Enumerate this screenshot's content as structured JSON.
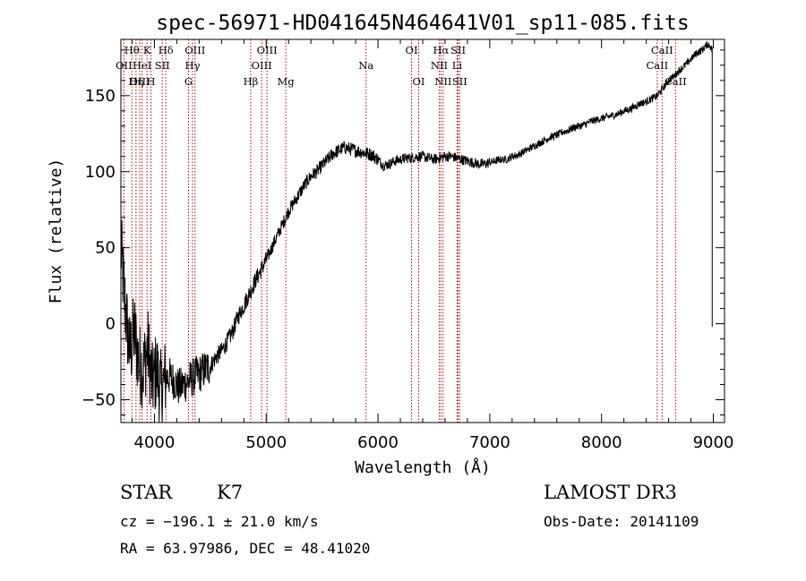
{
  "chart_data": {
    "type": "line",
    "title": "spec-56971-HD041645N464641V01_sp11-085.fits",
    "xlabel": "Wavelength (Å)",
    "ylabel": "Flux (relative)",
    "xlim": [
      3700,
      9100
    ],
    "ylim": [
      -65,
      187
    ],
    "xticks": [
      4000,
      5000,
      6000,
      7000,
      8000,
      9000
    ],
    "yticks": [
      -50,
      0,
      50,
      100,
      150
    ],
    "series": [
      {
        "name": "flux",
        "x": [
          3700,
          3740,
          3780,
          3820,
          3860,
          3900,
          3940,
          3980,
          4020,
          4060,
          4100,
          4140,
          4180,
          4220,
          4260,
          4300,
          4350,
          4400,
          4450,
          4500,
          4550,
          4600,
          4650,
          4700,
          4750,
          4800,
          4850,
          4900,
          4950,
          5000,
          5050,
          5100,
          5150,
          5200,
          5250,
          5300,
          5350,
          5400,
          5450,
          5500,
          5550,
          5600,
          5650,
          5700,
          5750,
          5800,
          5850,
          5900,
          5950,
          6000,
          6050,
          6100,
          6150,
          6200,
          6250,
          6300,
          6350,
          6400,
          6450,
          6500,
          6550,
          6600,
          6650,
          6700,
          6750,
          6800,
          6850,
          6900,
          6950,
          7000,
          7050,
          7100,
          7150,
          7200,
          7250,
          7300,
          7350,
          7400,
          7450,
          7500,
          7550,
          7600,
          7650,
          7700,
          7750,
          7800,
          7850,
          7900,
          7950,
          8000,
          8050,
          8100,
          8150,
          8200,
          8250,
          8300,
          8350,
          8400,
          8450,
          8500,
          8550,
          8600,
          8650,
          8700,
          8750,
          8800,
          8850,
          8900,
          8950,
          8980,
          9000
        ],
        "y": [
          50,
          10,
          -20,
          -5,
          -25,
          -30,
          -15,
          -40,
          -30,
          -45,
          -35,
          -35,
          -38,
          -42,
          -40,
          -38,
          -35,
          -33,
          -30,
          -28,
          -22,
          -18,
          -12,
          -5,
          5,
          12,
          20,
          28,
          35,
          42,
          50,
          58,
          66,
          74,
          80,
          86,
          92,
          97,
          100,
          104,
          108,
          112,
          114,
          116,
          115,
          114,
          113,
          112,
          111,
          108,
          104,
          105,
          107,
          108,
          109,
          109,
          110,
          110,
          109,
          108,
          109,
          110,
          110,
          109,
          108,
          107,
          106,
          105,
          105,
          106,
          107,
          108,
          108,
          110,
          111,
          113,
          115,
          117,
          119,
          121,
          123,
          124,
          126,
          127,
          129,
          130,
          131,
          133,
          134,
          135,
          136,
          137,
          138,
          140,
          141,
          143,
          145,
          146,
          148,
          150,
          155,
          160,
          163,
          167,
          170,
          174,
          178,
          180,
          184,
          182,
          175
        ]
      }
    ],
    "spectral_lines": [
      {
        "label": "Hθ",
        "x": 3798,
        "row": 0
      },
      {
        "label": "OII",
        "x": 3727,
        "row": 1
      },
      {
        "label": "OIII",
        "x": 3869,
        "row": 2
      },
      {
        "label": "K",
        "x": 3934,
        "row": 0
      },
      {
        "label": "HeI",
        "x": 3889,
        "row": 1
      },
      {
        "label": "Hη",
        "x": 3835,
        "row": 2
      },
      {
        "label": "Hδ",
        "x": 4102,
        "row": 0
      },
      {
        "label": "SII",
        "x": 4070,
        "row": 1
      },
      {
        "label": "H",
        "x": 3969,
        "row": 2
      },
      {
        "label": "OIII",
        "x": 4363,
        "row": 0
      },
      {
        "label": "Hγ",
        "x": 4341,
        "row": 1
      },
      {
        "label": "G",
        "x": 4305,
        "row": 2
      },
      {
        "label": "OIII",
        "x": 5007,
        "row": 0
      },
      {
        "label": "OIII",
        "x": 4959,
        "row": 1
      },
      {
        "label": "Hβ",
        "x": 4861,
        "row": 2
      },
      {
        "label": "Mg",
        "x": 5175,
        "row": 2
      },
      {
        "label": "Na",
        "x": 5893,
        "row": 1
      },
      {
        "label": "OI",
        "x": 6300,
        "row": 0
      },
      {
        "label": "OI",
        "x": 6364,
        "row": 2
      },
      {
        "label": "Hα",
        "x": 6563,
        "row": 0
      },
      {
        "label": "NII",
        "x": 6548,
        "row": 1
      },
      {
        "label": "NII",
        "x": 6583,
        "row": 2
      },
      {
        "label": "SII",
        "x": 6717,
        "row": 0
      },
      {
        "label": "Li",
        "x": 6708,
        "row": 1
      },
      {
        "label": "SII",
        "x": 6731,
        "row": 2
      },
      {
        "label": "CaII",
        "x": 8542,
        "row": 0
      },
      {
        "label": "CaII",
        "x": 8498,
        "row": 1
      },
      {
        "label": "CaII",
        "x": 8662,
        "row": 2
      }
    ]
  },
  "info": {
    "class": "STAR",
    "subclass": "K7",
    "survey": "LAMOST DR3",
    "cz": "cz = −196.1 ± 21.0 km/s",
    "obs_date": "Obs-Date: 20141109",
    "coords": "RA =  63.97986, DEC =  48.41020"
  }
}
